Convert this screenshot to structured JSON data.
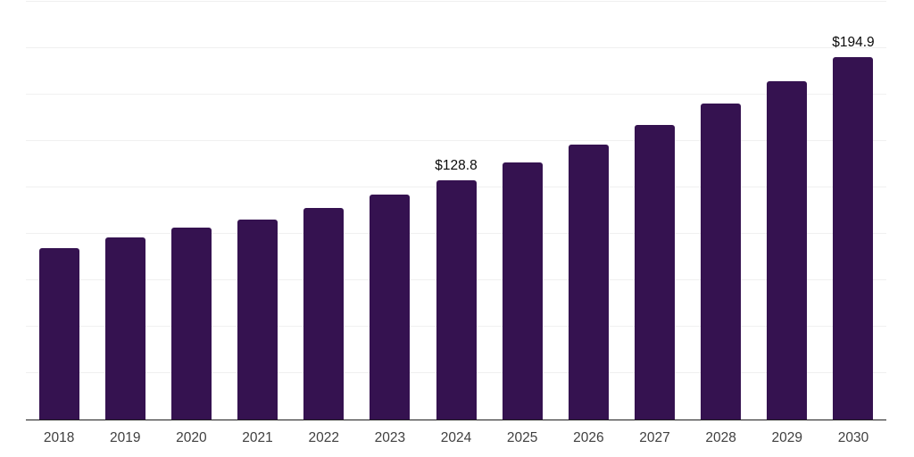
{
  "chart": {
    "colors": {
      "background": "#ffffff",
      "bar": "#351250",
      "gridline": "#f0f0f0",
      "axis_line": "#1f1f1f",
      "tick_label": "#404040",
      "data_label": "#0a0a0a"
    }
  },
  "chart_data": {
    "type": "bar",
    "title": "",
    "xlabel": "",
    "ylabel": "",
    "categories": [
      "2018",
      "2019",
      "2020",
      "2021",
      "2022",
      "2023",
      "2024",
      "2025",
      "2026",
      "2027",
      "2028",
      "2029",
      "2030"
    ],
    "values": [
      92.0,
      98.0,
      103.2,
      107.5,
      113.9,
      120.9,
      128.8,
      138.0,
      147.9,
      158.4,
      169.7,
      181.9,
      194.9
    ],
    "data_labels": [
      "",
      "",
      "",
      "",
      "",
      "",
      "$128.8",
      "",
      "",
      "",
      "",
      "",
      "$194.9"
    ],
    "ylim": [
      0,
      225
    ],
    "y_gridline_step": 25,
    "grid": true,
    "legend": false,
    "gridline_orientation": "horizontal",
    "labeled_points": [
      {
        "category": "2024",
        "label": "$128.8",
        "value": 128.8
      },
      {
        "category": "2030",
        "label": "$194.9",
        "value": 194.9
      }
    ]
  }
}
